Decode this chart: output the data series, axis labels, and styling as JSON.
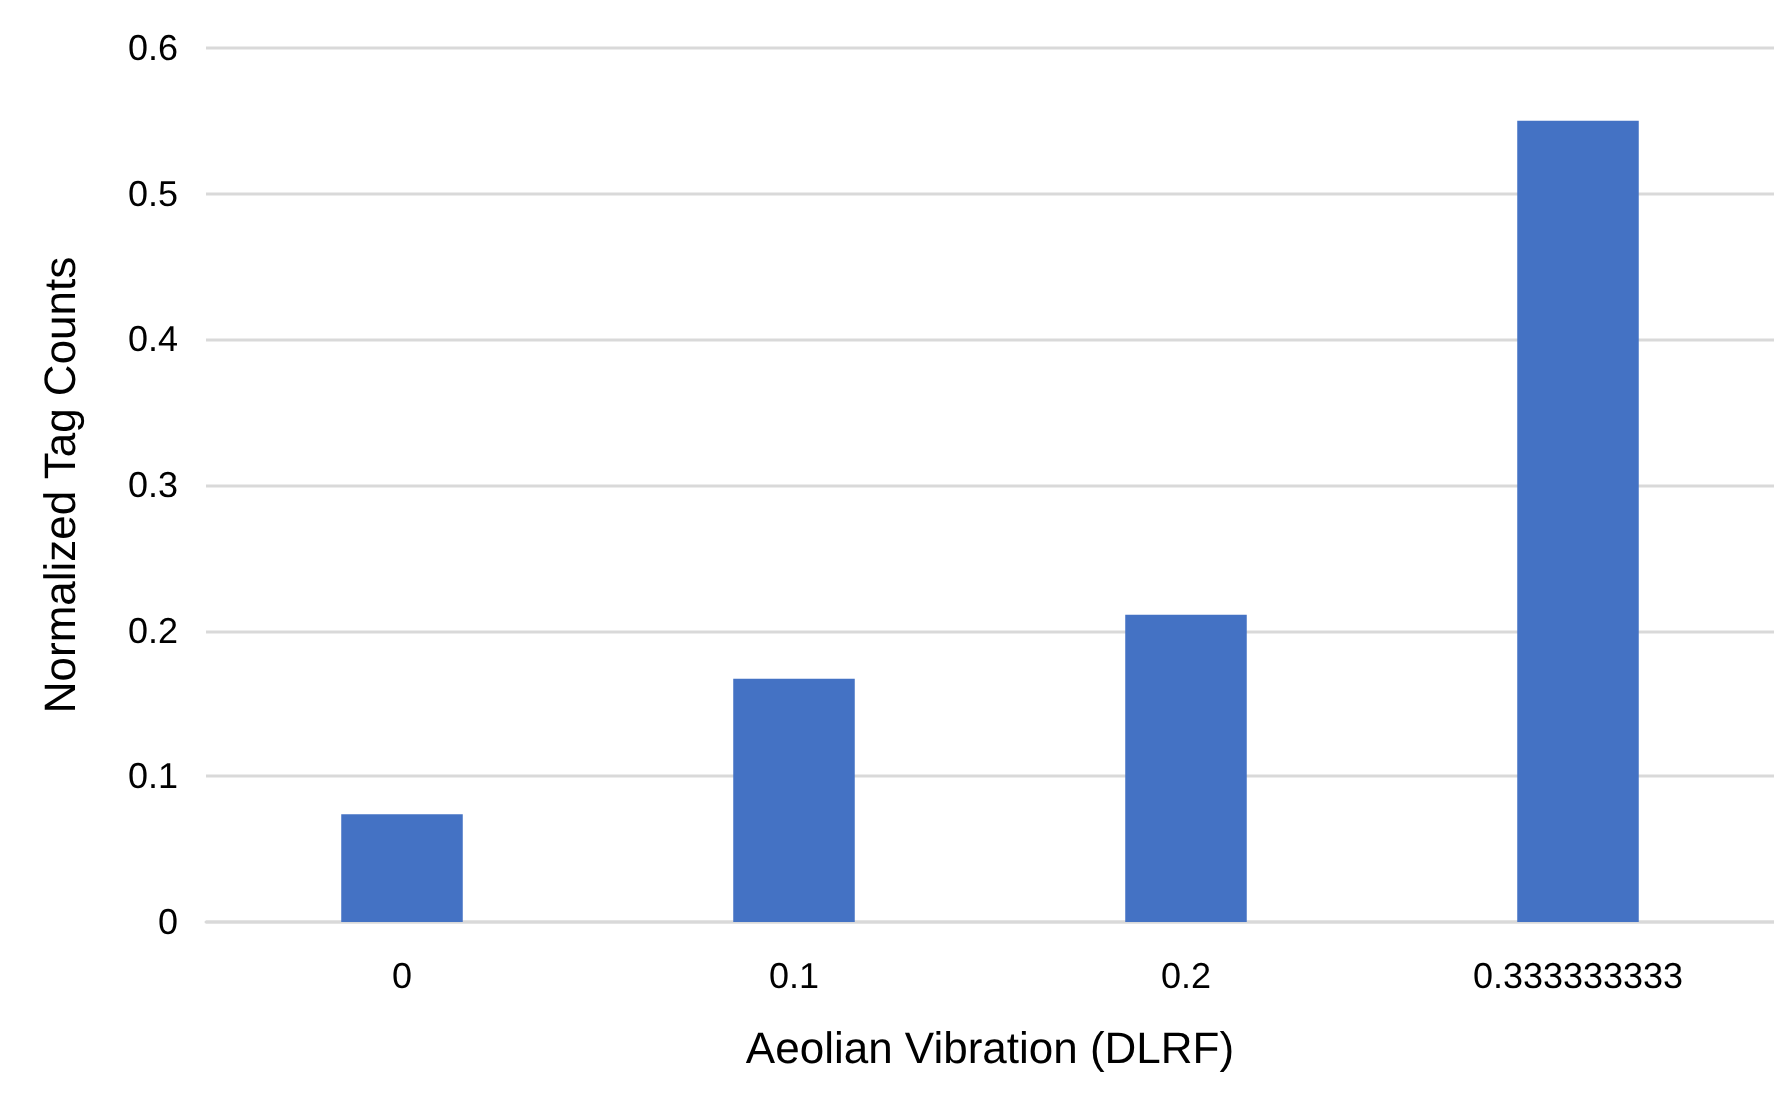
{
  "chart_data": {
    "type": "bar",
    "xlabel": "Aeolian Vibration (DLRF)",
    "ylabel": "Normalized Tag Counts",
    "categories": [
      "0",
      "0.1",
      "0.2",
      "0.333333333"
    ],
    "values": [
      0.074,
      0.167,
      0.211,
      0.55
    ],
    "color": "#4472c4",
    "ylim": [
      0,
      0.6
    ],
    "yticks": [
      0,
      0.1,
      0.2,
      0.3,
      0.4,
      0.5,
      0.6
    ],
    "grid": "y"
  }
}
